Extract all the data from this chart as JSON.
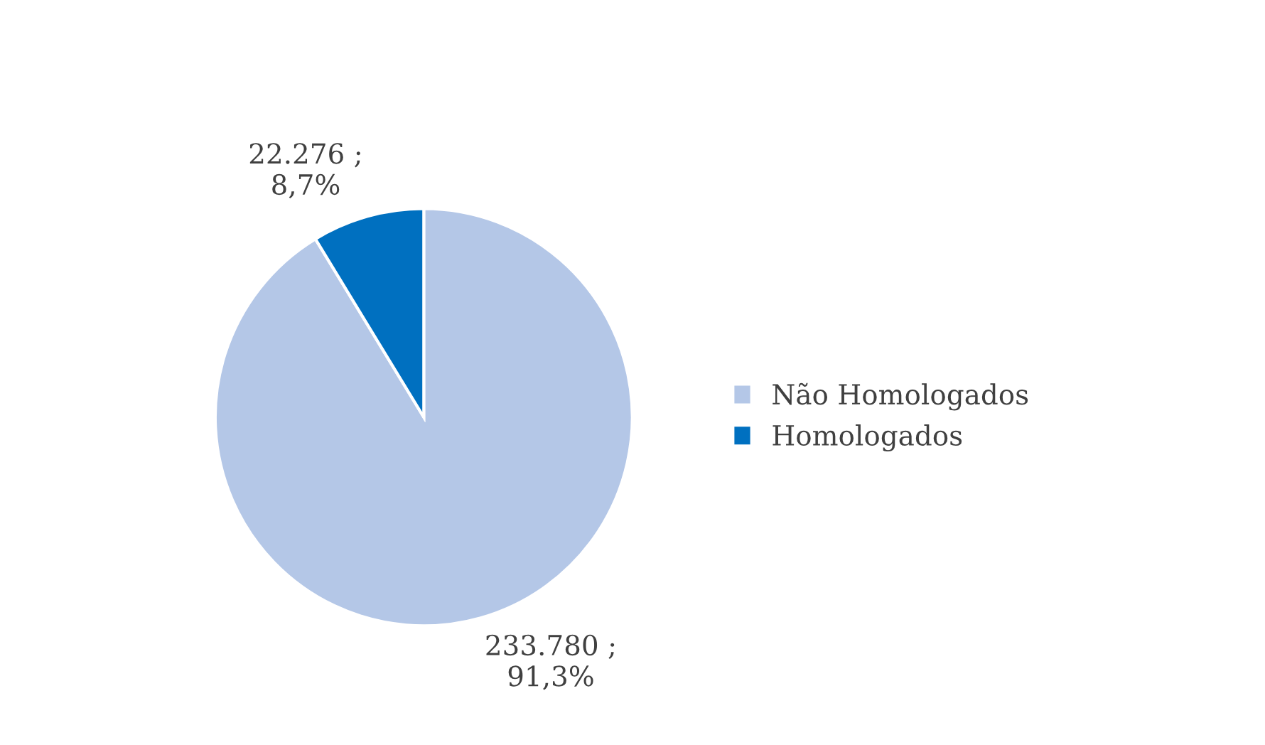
{
  "chart_data": {
    "type": "pie",
    "categories": [
      "Não Homologados",
      "Homologados"
    ],
    "values": [
      233780,
      22276
    ],
    "value_labels": [
      "233.780 ;\n91,3%",
      "22.276 ;\n8,7%"
    ],
    "colors": [
      "#b4c7e7",
      "#0070c0"
    ],
    "legend": "right"
  }
}
